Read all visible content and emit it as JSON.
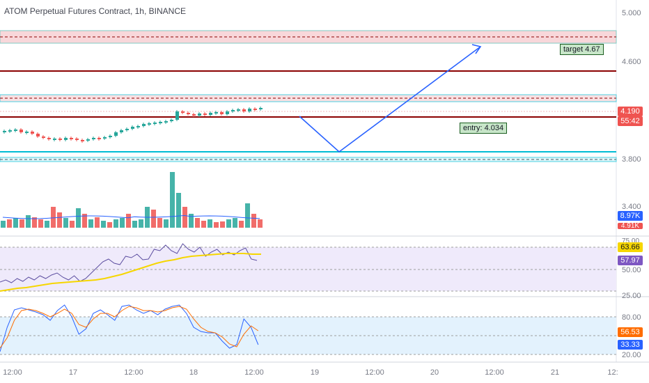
{
  "title": "ATOM Perpetual Futures Contract, 1h, BINANCE",
  "price_axis": {
    "main_ticks": [
      "5.000",
      "4.600",
      "3.800"
    ],
    "volume_tick": "3.400",
    "rsi_ticks": [
      "75.00",
      "50.00",
      "25.00"
    ],
    "stoch_ticks": [
      "80.00",
      "20.00"
    ]
  },
  "tags": {
    "last_price": "4.190",
    "countdown": "55:42",
    "volume": "8.97K",
    "volume_ma": "4.91K",
    "rsi": "63.66",
    "rsi_ma": "57.97",
    "stoch_d": "56.53",
    "stoch_k": "33.33"
  },
  "colors": {
    "up": "#26a69a",
    "down": "#ef5350",
    "red_level": "#8b0000",
    "cyan_level": "#00bcd4",
    "path": "#2962ff",
    "rsi_line": "#5c4ea0",
    "rsi_ma": "#f6d600",
    "stoch_k": "#2962ff",
    "stoch_d": "#ff6d00"
  },
  "annotations": {
    "target": "target 4.67",
    "entry": "entry: 4.034"
  },
  "time_axis": [
    "12:00",
    "17",
    "12:00",
    "18",
    "12:00",
    "19",
    "12:00",
    "20",
    "12:00",
    "21",
    "12:"
  ]
}
